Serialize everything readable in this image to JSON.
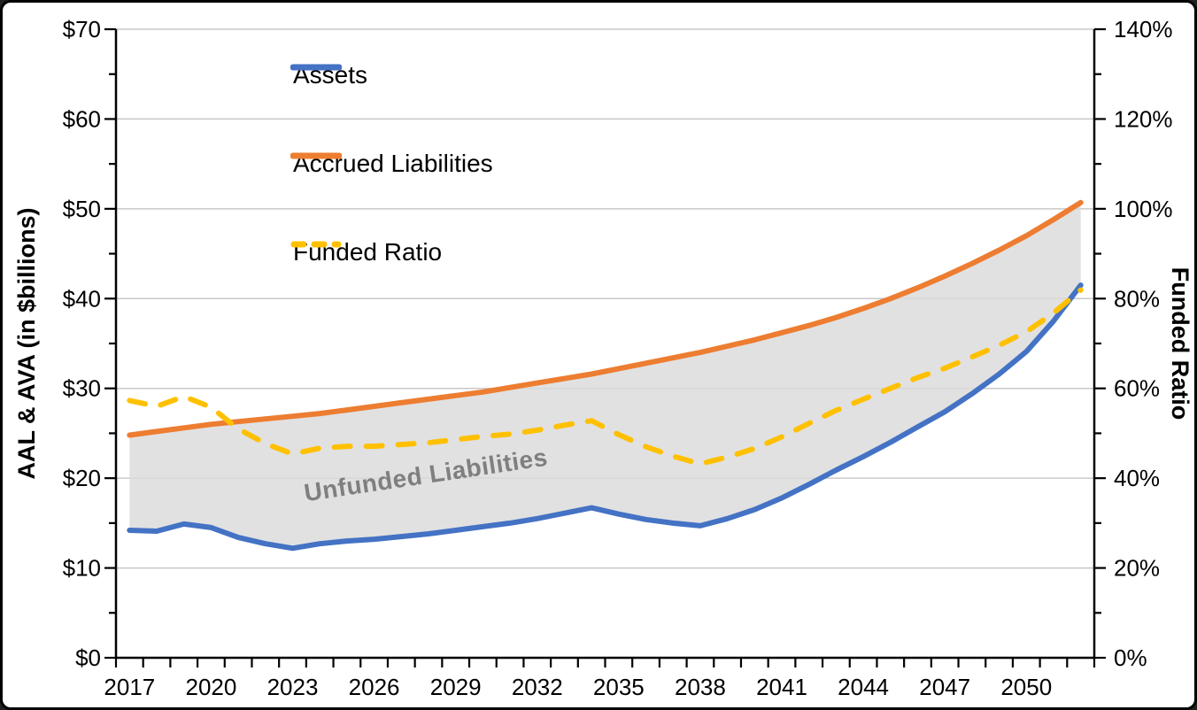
{
  "chart_data": {
    "type": "line",
    "title": "",
    "x": [
      2017,
      2018,
      2019,
      2020,
      2021,
      2022,
      2023,
      2024,
      2025,
      2026,
      2027,
      2028,
      2029,
      2030,
      2031,
      2032,
      2033,
      2034,
      2035,
      2036,
      2037,
      2038,
      2039,
      2040,
      2041,
      2042,
      2043,
      2044,
      2045,
      2046,
      2047,
      2048,
      2049,
      2050,
      2051,
      2052
    ],
    "x_tick_labels": [
      "2017",
      "2020",
      "2023",
      "2026",
      "2029",
      "2032",
      "2035",
      "2038",
      "2041",
      "2044",
      "2047",
      "2050"
    ],
    "series": [
      {
        "id": "assets-line",
        "name": "Assets",
        "axis": "left",
        "color": "#4472C4",
        "style": "solid",
        "values": [
          14.2,
          14.1,
          14.9,
          14.5,
          13.4,
          12.7,
          12.2,
          12.7,
          13.0,
          13.2,
          13.5,
          13.8,
          14.2,
          14.6,
          15.0,
          15.5,
          16.1,
          16.7,
          16.0,
          15.4,
          15.0,
          14.7,
          15.5,
          16.5,
          17.8,
          19.3,
          20.9,
          22.4,
          24.0,
          25.7,
          27.4,
          29.4,
          31.6,
          34.1,
          37.5,
          41.5
        ]
      },
      {
        "id": "liabilities-line",
        "name": "Accrued Liabilities",
        "axis": "left",
        "color": "#ED7D31",
        "style": "solid",
        "values": [
          24.8,
          25.2,
          25.6,
          26.0,
          26.3,
          26.6,
          26.9,
          27.2,
          27.6,
          28.0,
          28.4,
          28.8,
          29.2,
          29.6,
          30.1,
          30.6,
          31.1,
          31.6,
          32.2,
          32.8,
          33.4,
          34.0,
          34.7,
          35.4,
          36.2,
          37.0,
          37.9,
          38.9,
          40.0,
          41.2,
          42.5,
          43.9,
          45.4,
          47.0,
          48.8,
          50.7
        ]
      },
      {
        "id": "funded-ratio-line",
        "name": "Funded Ratio",
        "axis": "right",
        "color": "#FFC000",
        "style": "dashed",
        "values": [
          57.3,
          56.0,
          58.2,
          55.8,
          51.0,
          47.7,
          45.4,
          46.7,
          47.1,
          47.1,
          47.5,
          47.9,
          48.6,
          49.3,
          49.8,
          50.7,
          51.8,
          52.8,
          49.7,
          47.0,
          44.9,
          43.2,
          44.7,
          46.6,
          49.2,
          52.2,
          55.1,
          57.6,
          60.0,
          62.4,
          64.5,
          67.0,
          69.6,
          72.6,
          76.8,
          81.9
        ]
      }
    ],
    "left_axis": {
      "label": "AAL & AVA (in $billions)",
      "min": 0,
      "max": 70,
      "major_step": 10,
      "minor_step": 5,
      "tick_values": [
        0,
        10,
        20,
        30,
        40,
        50,
        60,
        70
      ],
      "tick_labels": [
        "$0",
        "$10",
        "$20",
        "$30",
        "$40",
        "$50",
        "$60",
        "$70"
      ]
    },
    "right_axis": {
      "label": "Funded Ratio",
      "min": 0,
      "max": 140,
      "major_step": 20,
      "minor_step": 10,
      "tick_values": [
        0,
        20,
        40,
        60,
        80,
        100,
        120,
        140
      ],
      "tick_labels": [
        "0%",
        "20%",
        "40%",
        "60%",
        "80%",
        "100%",
        "120%",
        "140%"
      ]
    },
    "area_band": {
      "label": "Unfunded Liabilities",
      "between": [
        "liabilities-line",
        "assets-line"
      ],
      "fill": "#DADADA",
      "label_color": "#7f7f7f"
    },
    "grid": "horizontal-on",
    "gridline_color": "#C9C9C9",
    "axis_color": "#000000",
    "legend_position": "top-left-inside"
  },
  "legend": {
    "items": [
      {
        "label": "Assets"
      },
      {
        "label": "Accrued Liabilities"
      },
      {
        "label": "Funded Ratio"
      }
    ]
  },
  "labels": {
    "left_axis_title": "AAL & AVA (in $billions)",
    "right_axis_title": "Funded Ratio",
    "unfunded_area": "Unfunded Liabilities"
  }
}
